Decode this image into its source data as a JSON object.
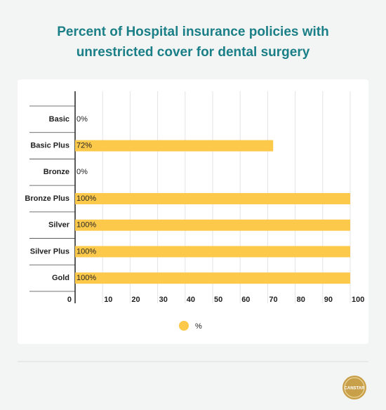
{
  "chart_data": {
    "type": "bar",
    "orientation": "horizontal",
    "title": [
      "Percent of Hospital insurance policies with",
      "unrestricted cover for dental surgery"
    ],
    "categories": [
      "Basic",
      "Basic Plus",
      "Bronze",
      "Bronze Plus",
      "Silver",
      "Silver Plus",
      "Gold"
    ],
    "series": [
      {
        "name": "%",
        "color": "#fdc94b",
        "values": [
          0,
          72,
          0,
          100,
          100,
          100,
          100
        ],
        "value_labels": [
          "0%",
          "72%",
          "0%",
          "100%",
          "100%",
          "100%",
          "100%"
        ]
      }
    ],
    "xlim": [
      0,
      100
    ],
    "xticks": [
      0,
      10,
      20,
      30,
      40,
      50,
      60,
      70,
      80,
      90,
      100
    ],
    "grid": true
  },
  "logo": "CANSTAR"
}
